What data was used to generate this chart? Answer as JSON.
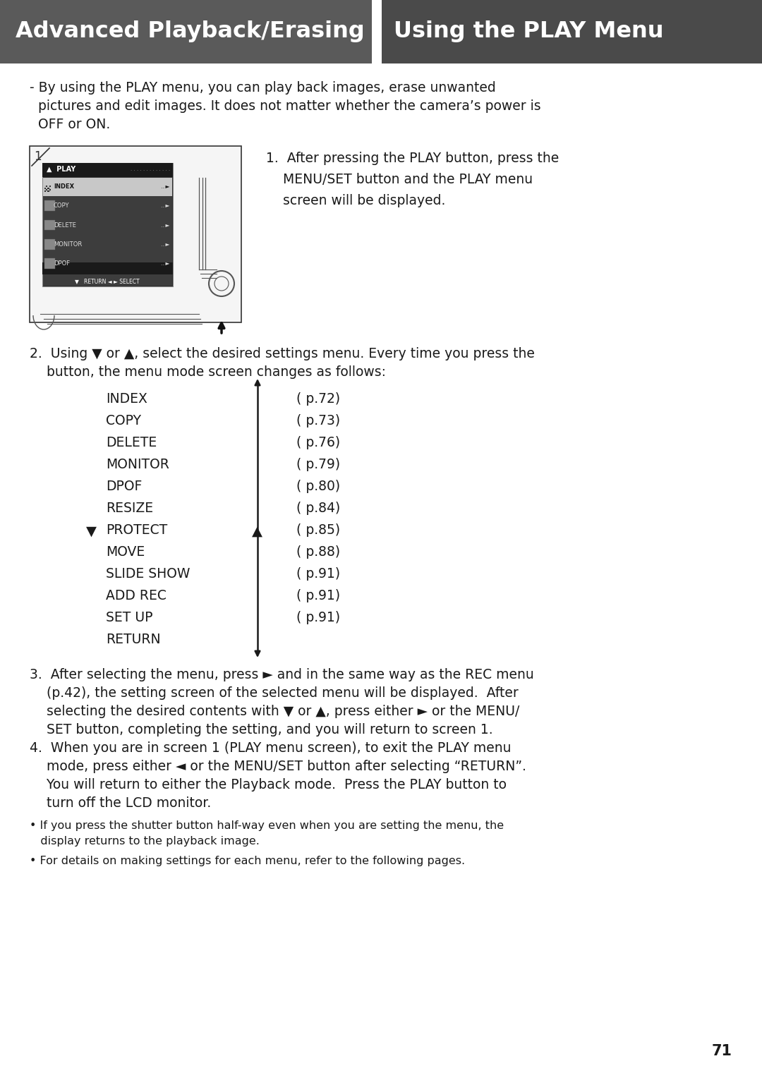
{
  "header_bg_left": "#5a5a5a",
  "header_bg_right": "#4a4a4a",
  "header_text_color": "#ffffff",
  "header_left": "Advanced Playback/Erasing",
  "header_right": "Using the PLAY Menu",
  "bg_color": "#ffffff",
  "text_color": "#1a1a1a",
  "page_number": "71",
  "divider_color": "#ffffff",
  "menu_items_left": [
    "INDEX",
    "COPY",
    "DELETE",
    "MONITOR",
    "DPOF",
    "RESIZE",
    "PROTECT",
    "MOVE",
    "SLIDE SHOW",
    "ADD REC",
    "SET UP",
    "RETURN"
  ],
  "menu_items_right": [
    "( p.72)",
    "( p.73)",
    "( p.76)",
    "( p.79)",
    "( p.80)",
    "( p.84)",
    "( p.85)",
    "( p.88)",
    "( p.91)",
    "( p.91)",
    "( p.91)",
    ""
  ],
  "protect_idx": 6
}
